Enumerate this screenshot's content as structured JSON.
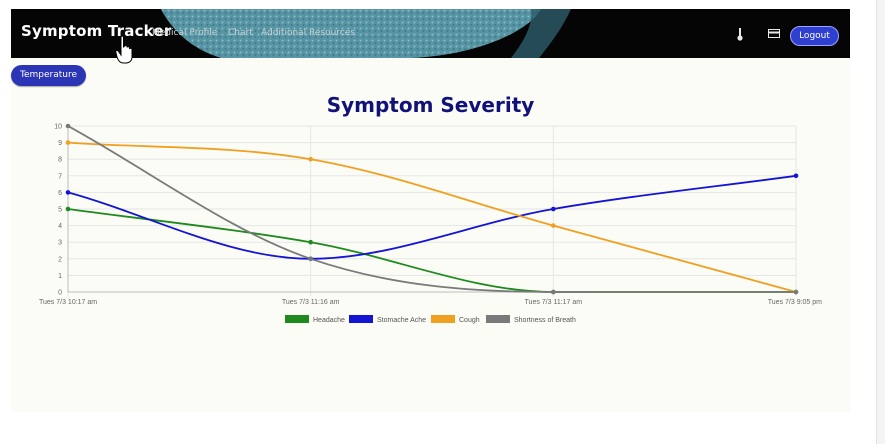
{
  "navbar": {
    "brand": "Symptom Tracker",
    "links": [
      "Medical Profile",
      "Chart",
      "Additional Resources"
    ],
    "icons": [
      "thermometer-icon",
      "card-icon"
    ],
    "logout_label": "Logout"
  },
  "temperature_button": "Temperature",
  "chart_data": {
    "type": "line",
    "title": "Symptom Severity",
    "x": [
      "Tues 7/3 10:17 am",
      "Tues 7/3 11:16 am",
      "Tues 7/3 11:17 am",
      "Tues 7/3 9:05 pm"
    ],
    "ylim": [
      0,
      10
    ],
    "yticks": [
      0,
      1,
      2,
      3,
      4,
      5,
      6,
      7,
      8,
      9,
      10
    ],
    "grid": true,
    "legend_position": "bottom",
    "series": [
      {
        "name": "Headache",
        "color": "#1e8a1e",
        "values": [
          5,
          3,
          0,
          0
        ]
      },
      {
        "name": "Stomache Ache",
        "color": "#1414d4",
        "values": [
          6,
          2,
          5,
          7
        ]
      },
      {
        "name": "Cough",
        "color": "#f0a020",
        "values": [
          9,
          8,
          4,
          0
        ]
      },
      {
        "name": "Shortness of Breath",
        "color": "#7a7a7a",
        "values": [
          10,
          2,
          0,
          0
        ]
      }
    ]
  }
}
